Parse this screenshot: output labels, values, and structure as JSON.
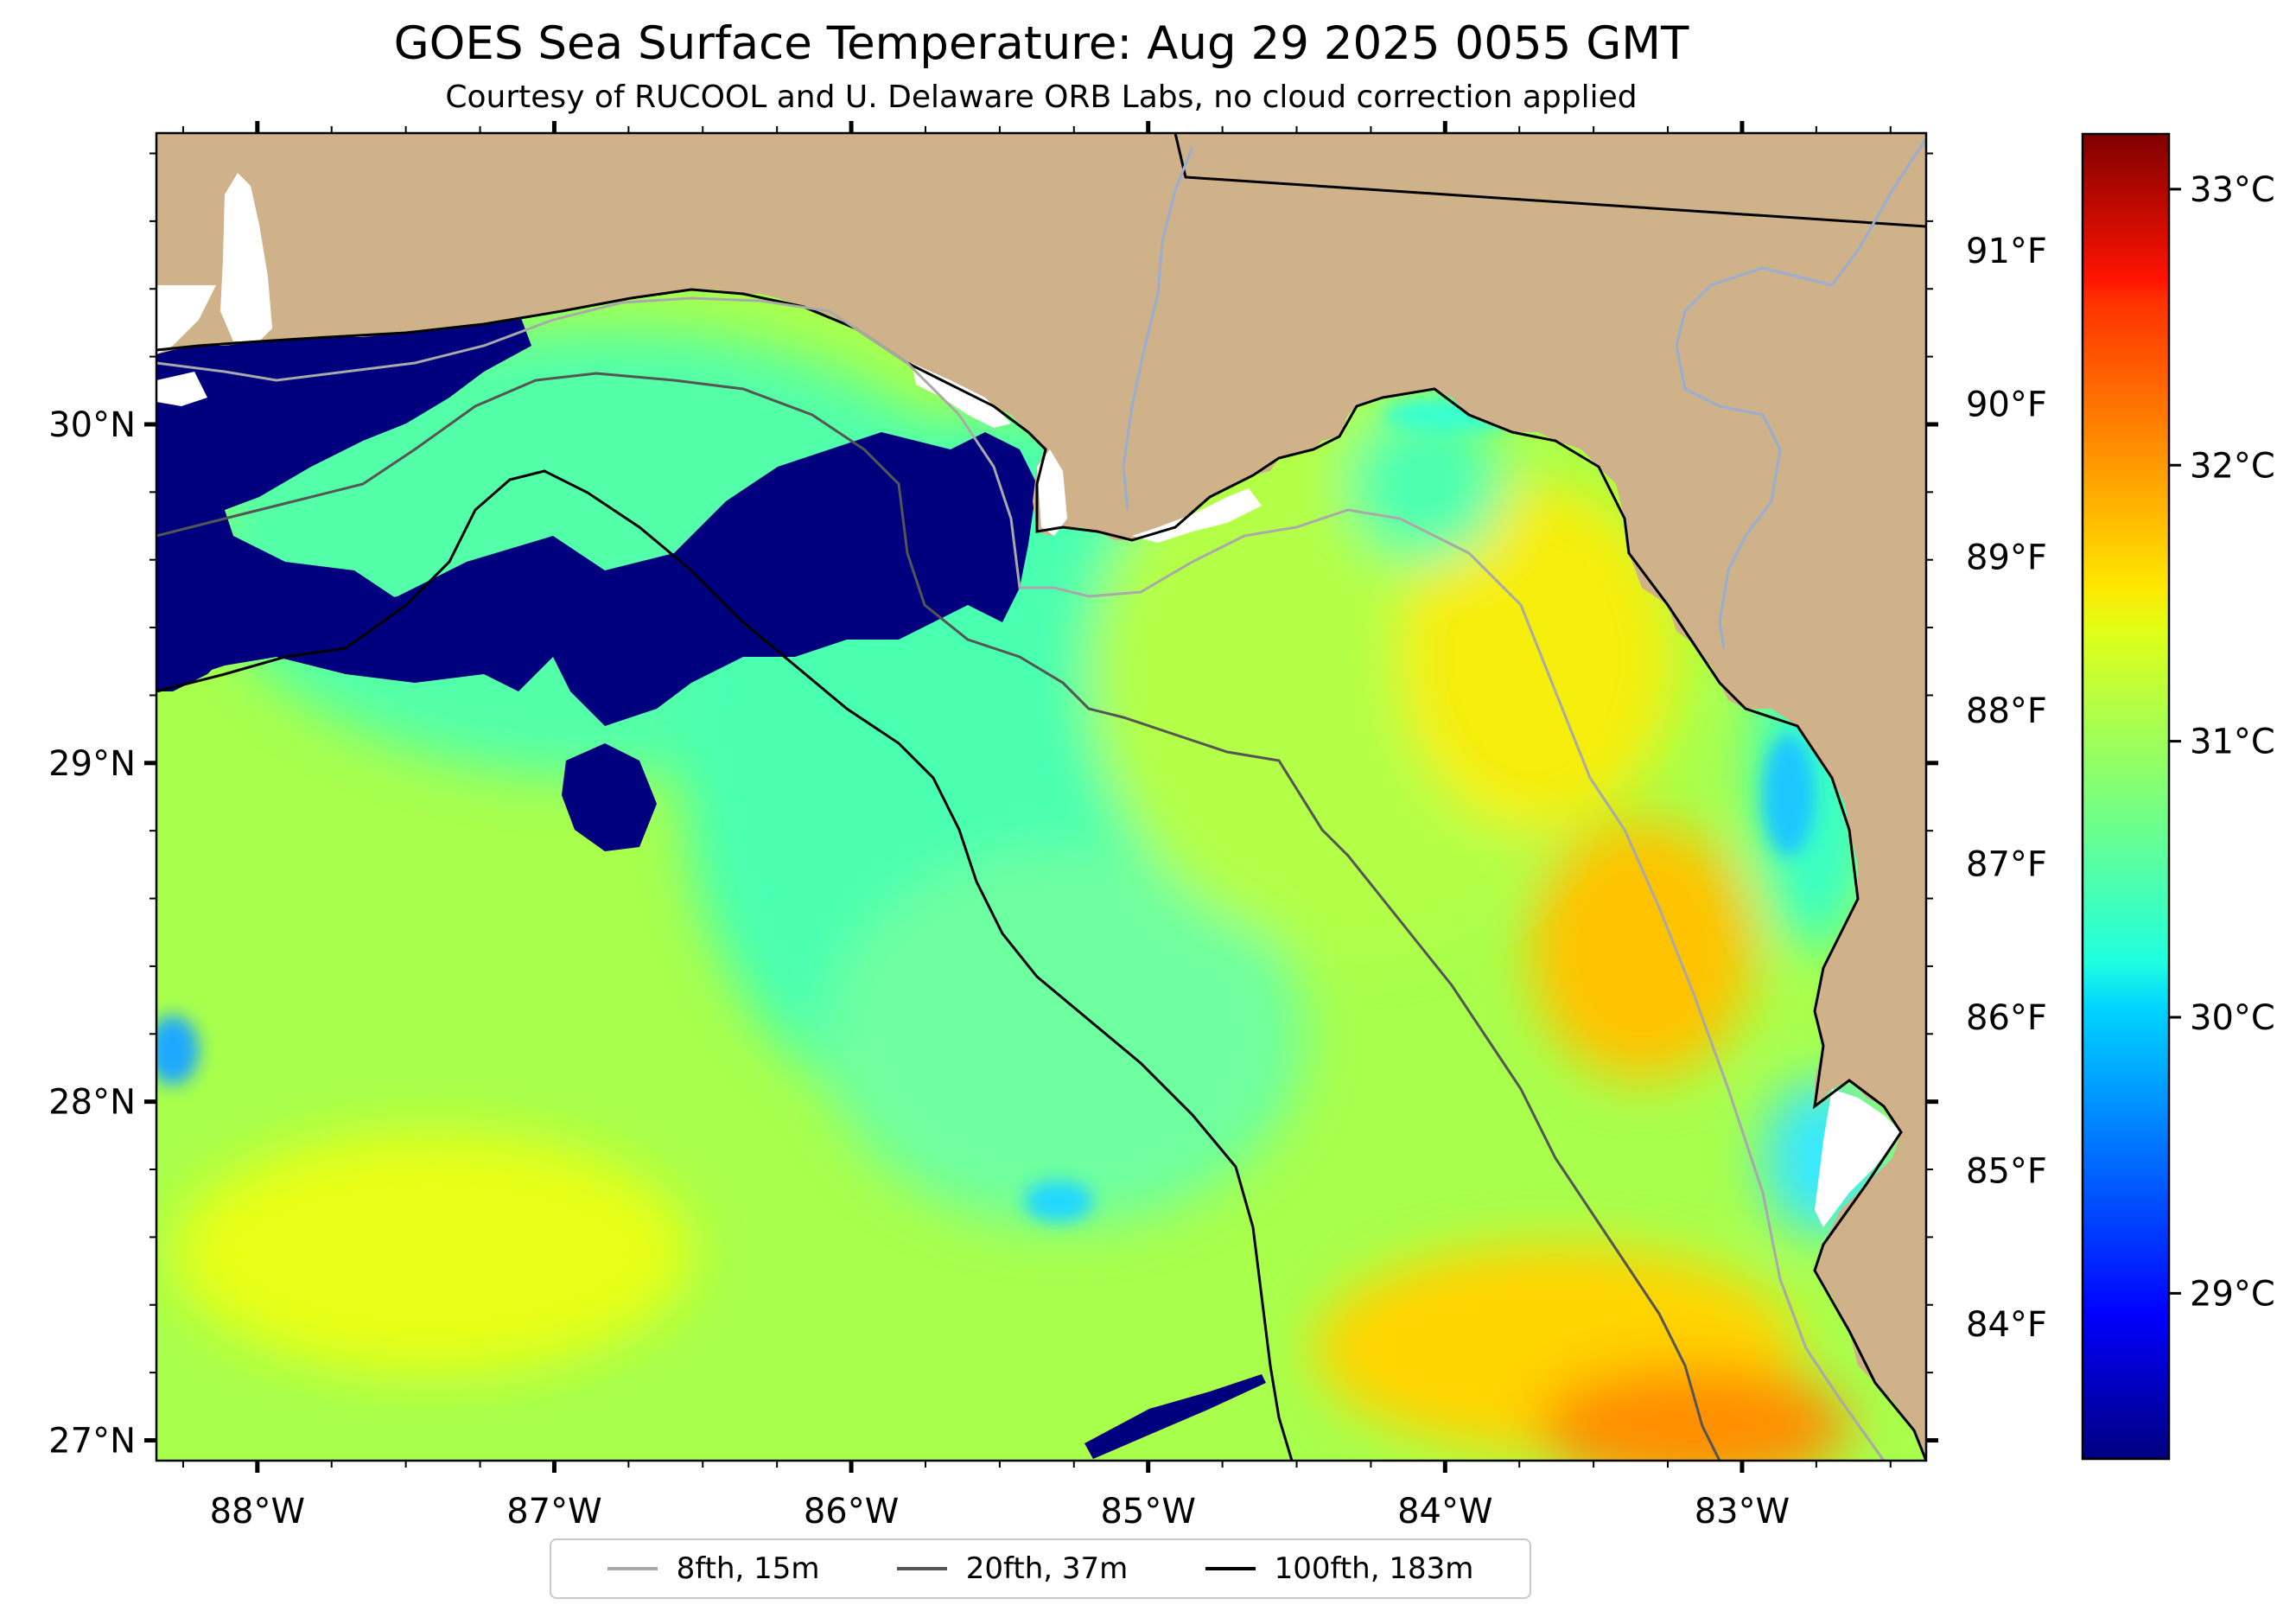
{
  "title": "GOES Sea Surface Temperature: Aug 29 2025 0055 GMT",
  "subtitle": "Courtesy of RUCOOL and U. Delaware ORB Labs, no cloud correction applied",
  "map": {
    "lon_range": [
      -88.34,
      -82.38
    ],
    "lat_range": [
      26.94,
      30.86
    ],
    "lon_ticks": [
      {
        "value": -88,
        "label": "88°W"
      },
      {
        "value": -87,
        "label": "87°W"
      },
      {
        "value": -86,
        "label": "86°W"
      },
      {
        "value": -85,
        "label": "85°W"
      },
      {
        "value": -84,
        "label": "84°W"
      },
      {
        "value": -83,
        "label": "83°W"
      }
    ],
    "lat_ticks": [
      {
        "value": 30,
        "label": "30°N"
      },
      {
        "value": 29,
        "label": "29°N"
      },
      {
        "value": 28,
        "label": "28°N"
      },
      {
        "value": 27,
        "label": "27°N"
      }
    ],
    "fahrenheit_ticks": [
      {
        "value": 91,
        "label": "91°F"
      },
      {
        "value": 90,
        "label": "90°F"
      },
      {
        "value": 89,
        "label": "89°F"
      },
      {
        "value": 88,
        "label": "88°F"
      },
      {
        "value": 87,
        "label": "87°F"
      },
      {
        "value": 86,
        "label": "86°F"
      },
      {
        "value": 85,
        "label": "85°F"
      },
      {
        "value": 84,
        "label": "84°F"
      }
    ],
    "land_color": "#cfb28a",
    "cloud_mask_color": "#00007f",
    "coastline_color": "#000000",
    "river_color": "#9aaed2"
  },
  "colorbar": {
    "colormap": "jet",
    "range_c": [
      28.4,
      33.2
    ],
    "ticks": [
      {
        "value": 33,
        "label": "33°C"
      },
      {
        "value": 32,
        "label": "32°C"
      },
      {
        "value": 31,
        "label": "31°C"
      },
      {
        "value": 30,
        "label": "30°C"
      },
      {
        "value": 29,
        "label": "29°C"
      }
    ]
  },
  "legend": [
    {
      "label": "8fth, 15m",
      "color": "#a9a9a9",
      "width": 4
    },
    {
      "label": "20fth, 37m",
      "color": "#555555",
      "width": 4
    },
    {
      "label": "100fth, 183m",
      "color": "#000000",
      "width": 4
    }
  ]
}
